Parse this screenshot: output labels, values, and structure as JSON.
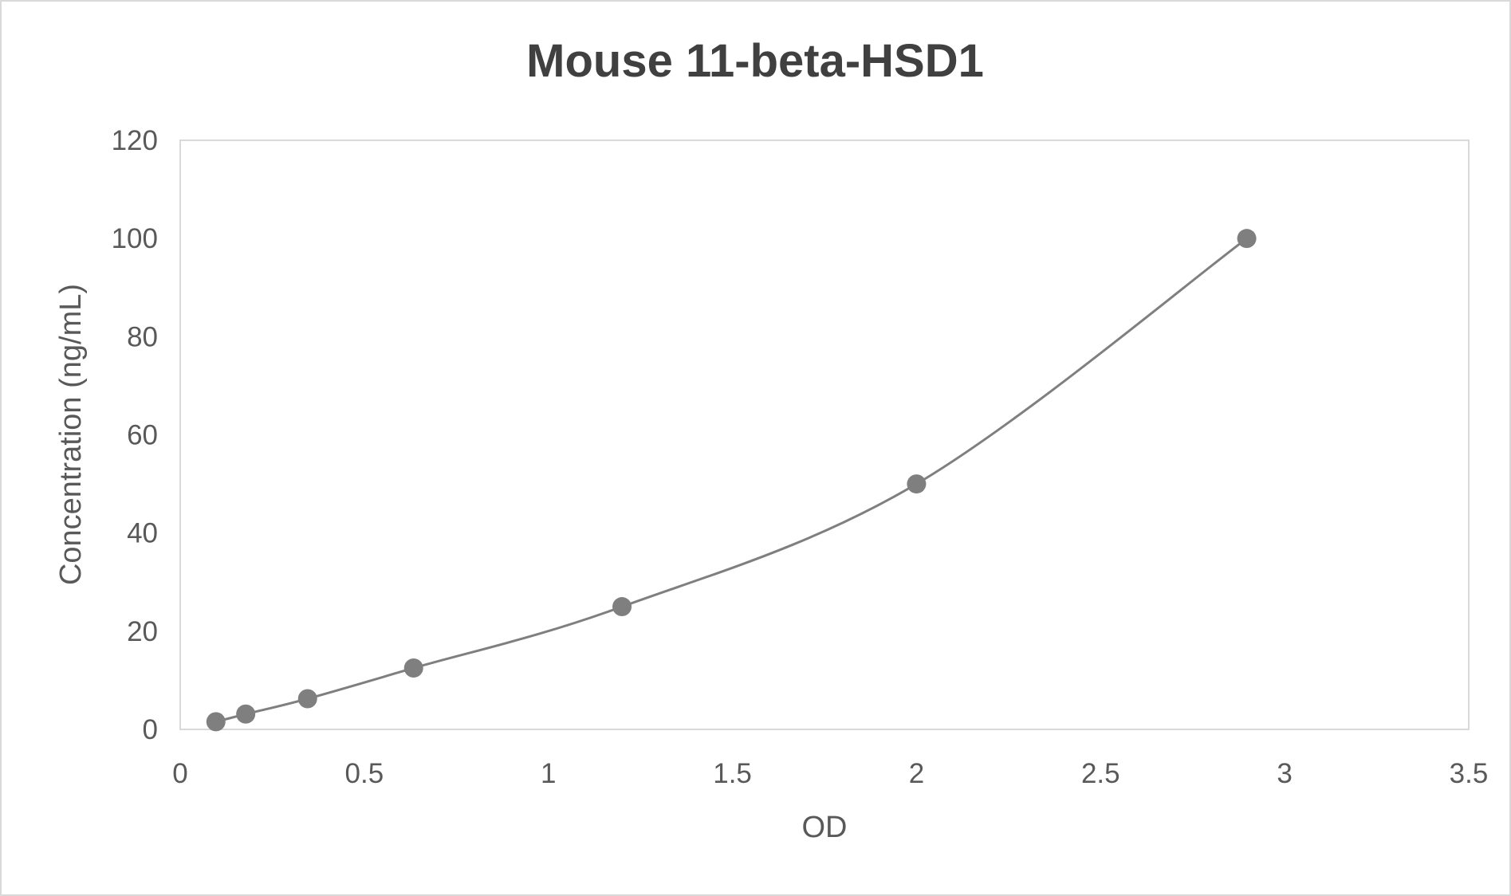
{
  "chart_data": {
    "type": "scatter",
    "title": "Mouse 11-beta-HSD1",
    "xlabel": "OD",
    "ylabel": "Concentration (ng/mL)",
    "xlim": [
      0,
      3.5
    ],
    "ylim": [
      0,
      120
    ],
    "xticks": [
      "0",
      "0.5",
      "1",
      "1.5",
      "2",
      "2.5",
      "3",
      "3.5"
    ],
    "yticks": [
      "0",
      "20",
      "40",
      "60",
      "80",
      "100",
      "120"
    ],
    "grid": false,
    "legend": "none",
    "line": "smooth",
    "color": "#7f7f7f",
    "series": [
      {
        "x": [
          0.097,
          0.178,
          0.346,
          0.634,
          1.2,
          2.0,
          2.897
        ],
        "y": [
          1.5625,
          3.125,
          6.25,
          12.5,
          25,
          50,
          100
        ]
      }
    ]
  }
}
